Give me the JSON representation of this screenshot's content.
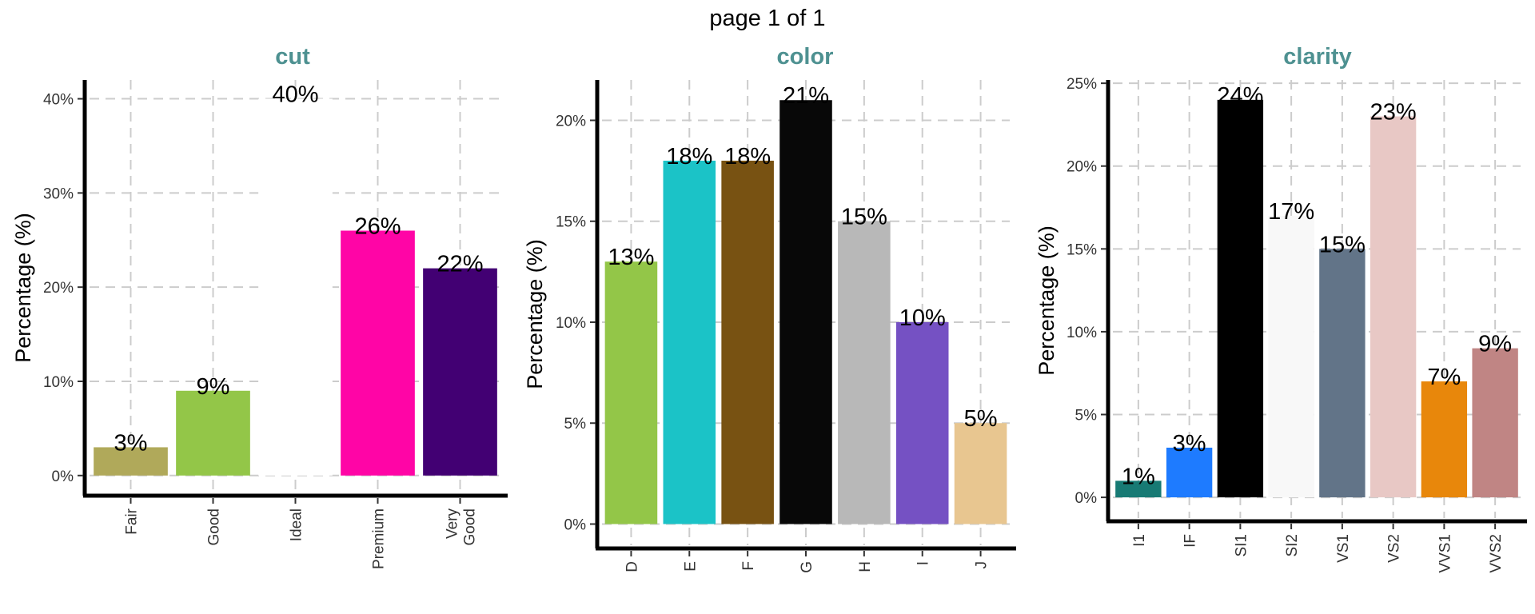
{
  "page_title": "page 1 of 1",
  "colors": {
    "panel_title": "#4e9191",
    "grid": "#cccccc",
    "axis": "#000000"
  },
  "chart_data": [
    {
      "type": "bar",
      "title": "cut",
      "ylabel": "Percentage (%)",
      "xlabel": "",
      "categories": [
        "Fair",
        "Good",
        "Ideal",
        "Premium",
        "Very Good"
      ],
      "tick_labels": [
        [
          "Fair"
        ],
        [
          "Good"
        ],
        [
          "Ideal"
        ],
        [
          "Premium"
        ],
        [
          "Very",
          "Good"
        ]
      ],
      "values": [
        3,
        9,
        40,
        26,
        22
      ],
      "data_labels": [
        "3%",
        "9%",
        "40%",
        "26%",
        "22%"
      ],
      "colors": [
        "#b0a95a",
        "#93c648",
        "#ffffff",
        "#ff05a6",
        "#420073"
      ],
      "yticks": [
        0,
        10,
        20,
        30,
        40
      ],
      "ytick_labels": [
        "0%",
        "10%",
        "20%",
        "30%",
        "40%"
      ],
      "ylim": [
        -1.8,
        42
      ],
      "grid": true
    },
    {
      "type": "bar",
      "title": "color",
      "ylabel": "Percentage (%)",
      "xlabel": "",
      "categories": [
        "D",
        "E",
        "F",
        "G",
        "H",
        "I",
        "J"
      ],
      "tick_labels": [
        [
          "D"
        ],
        [
          "E"
        ],
        [
          "F"
        ],
        [
          "G"
        ],
        [
          "H"
        ],
        [
          "I"
        ],
        [
          "J"
        ]
      ],
      "values": [
        13,
        18,
        18,
        21,
        15,
        10,
        5
      ],
      "data_labels": [
        "13%",
        "18%",
        "18%",
        "21%",
        "15%",
        "10%",
        "5%"
      ],
      "colors": [
        "#93c648",
        "#1bc3c7",
        "#785212",
        "#080808",
        "#b8b8b8",
        "#7551c3",
        "#e8c690"
      ],
      "yticks": [
        0,
        5,
        10,
        15,
        20
      ],
      "ytick_labels": [
        "0%",
        "5%",
        "10%",
        "15%",
        "20%"
      ],
      "ylim": [
        -1.05,
        22
      ],
      "grid": true
    },
    {
      "type": "bar",
      "title": "clarity",
      "ylabel": "Percentage (%)",
      "xlabel": "",
      "categories": [
        "I1",
        "IF",
        "SI1",
        "SI2",
        "VS1",
        "VS2",
        "VVS1",
        "VVS2"
      ],
      "tick_labels": [
        [
          "I1"
        ],
        [
          "IF"
        ],
        [
          "SI1"
        ],
        [
          "SI2"
        ],
        [
          "VS1"
        ],
        [
          "VS2"
        ],
        [
          "VVS1"
        ],
        [
          "VVS2"
        ]
      ],
      "values": [
        1,
        3,
        24,
        17,
        15,
        23,
        7,
        9
      ],
      "data_labels": [
        "1%",
        "3%",
        "24%",
        "17%",
        "15%",
        "23%",
        "7%",
        "9%"
      ],
      "colors": [
        "#177a74",
        "#1e7bff",
        "#000000",
        "#f8f8f8",
        "#627488",
        "#e8c8c5",
        "#e8870b",
        "#c08584"
      ],
      "yticks": [
        0,
        5,
        10,
        15,
        20,
        25
      ],
      "ytick_labels": [
        "0%",
        "5%",
        "10%",
        "15%",
        "20%",
        "25%"
      ],
      "ylim": [
        -1.25,
        25.2
      ],
      "grid": true
    }
  ]
}
